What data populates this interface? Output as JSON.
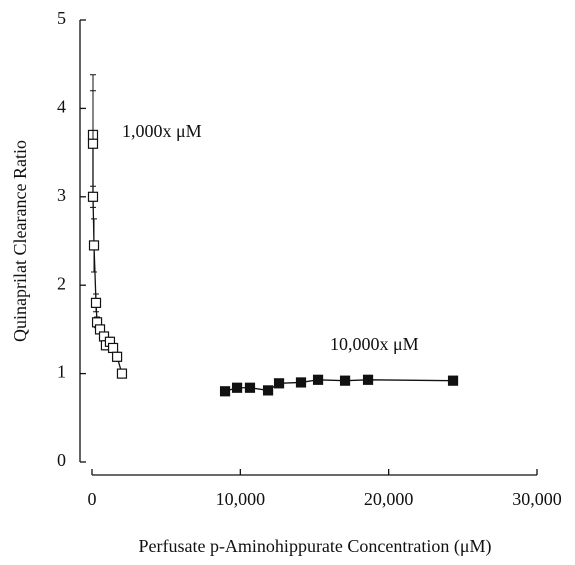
{
  "chart_data": {
    "type": "scatter",
    "xlabel": "Perfusate p-Aminohippurate Concentration (μM)",
    "ylabel": "Quinaprilat Clearance Ratio",
    "xlim": [
      0,
      30000
    ],
    "ylim": [
      0,
      5
    ],
    "xticks": [
      0,
      {
        "value": 10000,
        "label": "10,000"
      },
      {
        "value": 20000,
        "label": "20,000"
      },
      {
        "value": 30000,
        "label": "30,000"
      }
    ],
    "yticks": [
      0,
      1,
      2,
      3,
      4,
      5
    ],
    "series": [
      {
        "name": "1,000x μM",
        "color": "#ffffff",
        "marker": "open-square",
        "x": [
          67,
          67,
          67,
          135,
          270,
          340,
          540,
          810,
          940,
          1210,
          1420,
          1690,
          2020
        ],
        "values": [
          3.7,
          3.6,
          3.0,
          2.45,
          1.8,
          1.58,
          1.5,
          1.42,
          1.32,
          1.36,
          1.29,
          1.19,
          1.0
        ],
        "errors": [
          0.68,
          0.6,
          0.12,
          0.3,
          0.1,
          0.06,
          0.05,
          0.05,
          0.05,
          0.05,
          0.05,
          0.05,
          0.03
        ]
      },
      {
        "name": "10,000x μM",
        "color": "#111111",
        "marker": "filled-square",
        "x": [
          8970,
          9780,
          10650,
          11870,
          12610,
          14090,
          15240,
          17060,
          18610,
          24340
        ],
        "values": [
          0.8,
          0.84,
          0.84,
          0.81,
          0.89,
          0.9,
          0.93,
          0.92,
          0.93,
          0.92
        ],
        "errors": [
          0.02,
          0.03,
          0.02,
          0.03,
          0.02,
          0.02,
          0.02,
          0.02,
          0.02,
          0.02
        ]
      }
    ]
  }
}
